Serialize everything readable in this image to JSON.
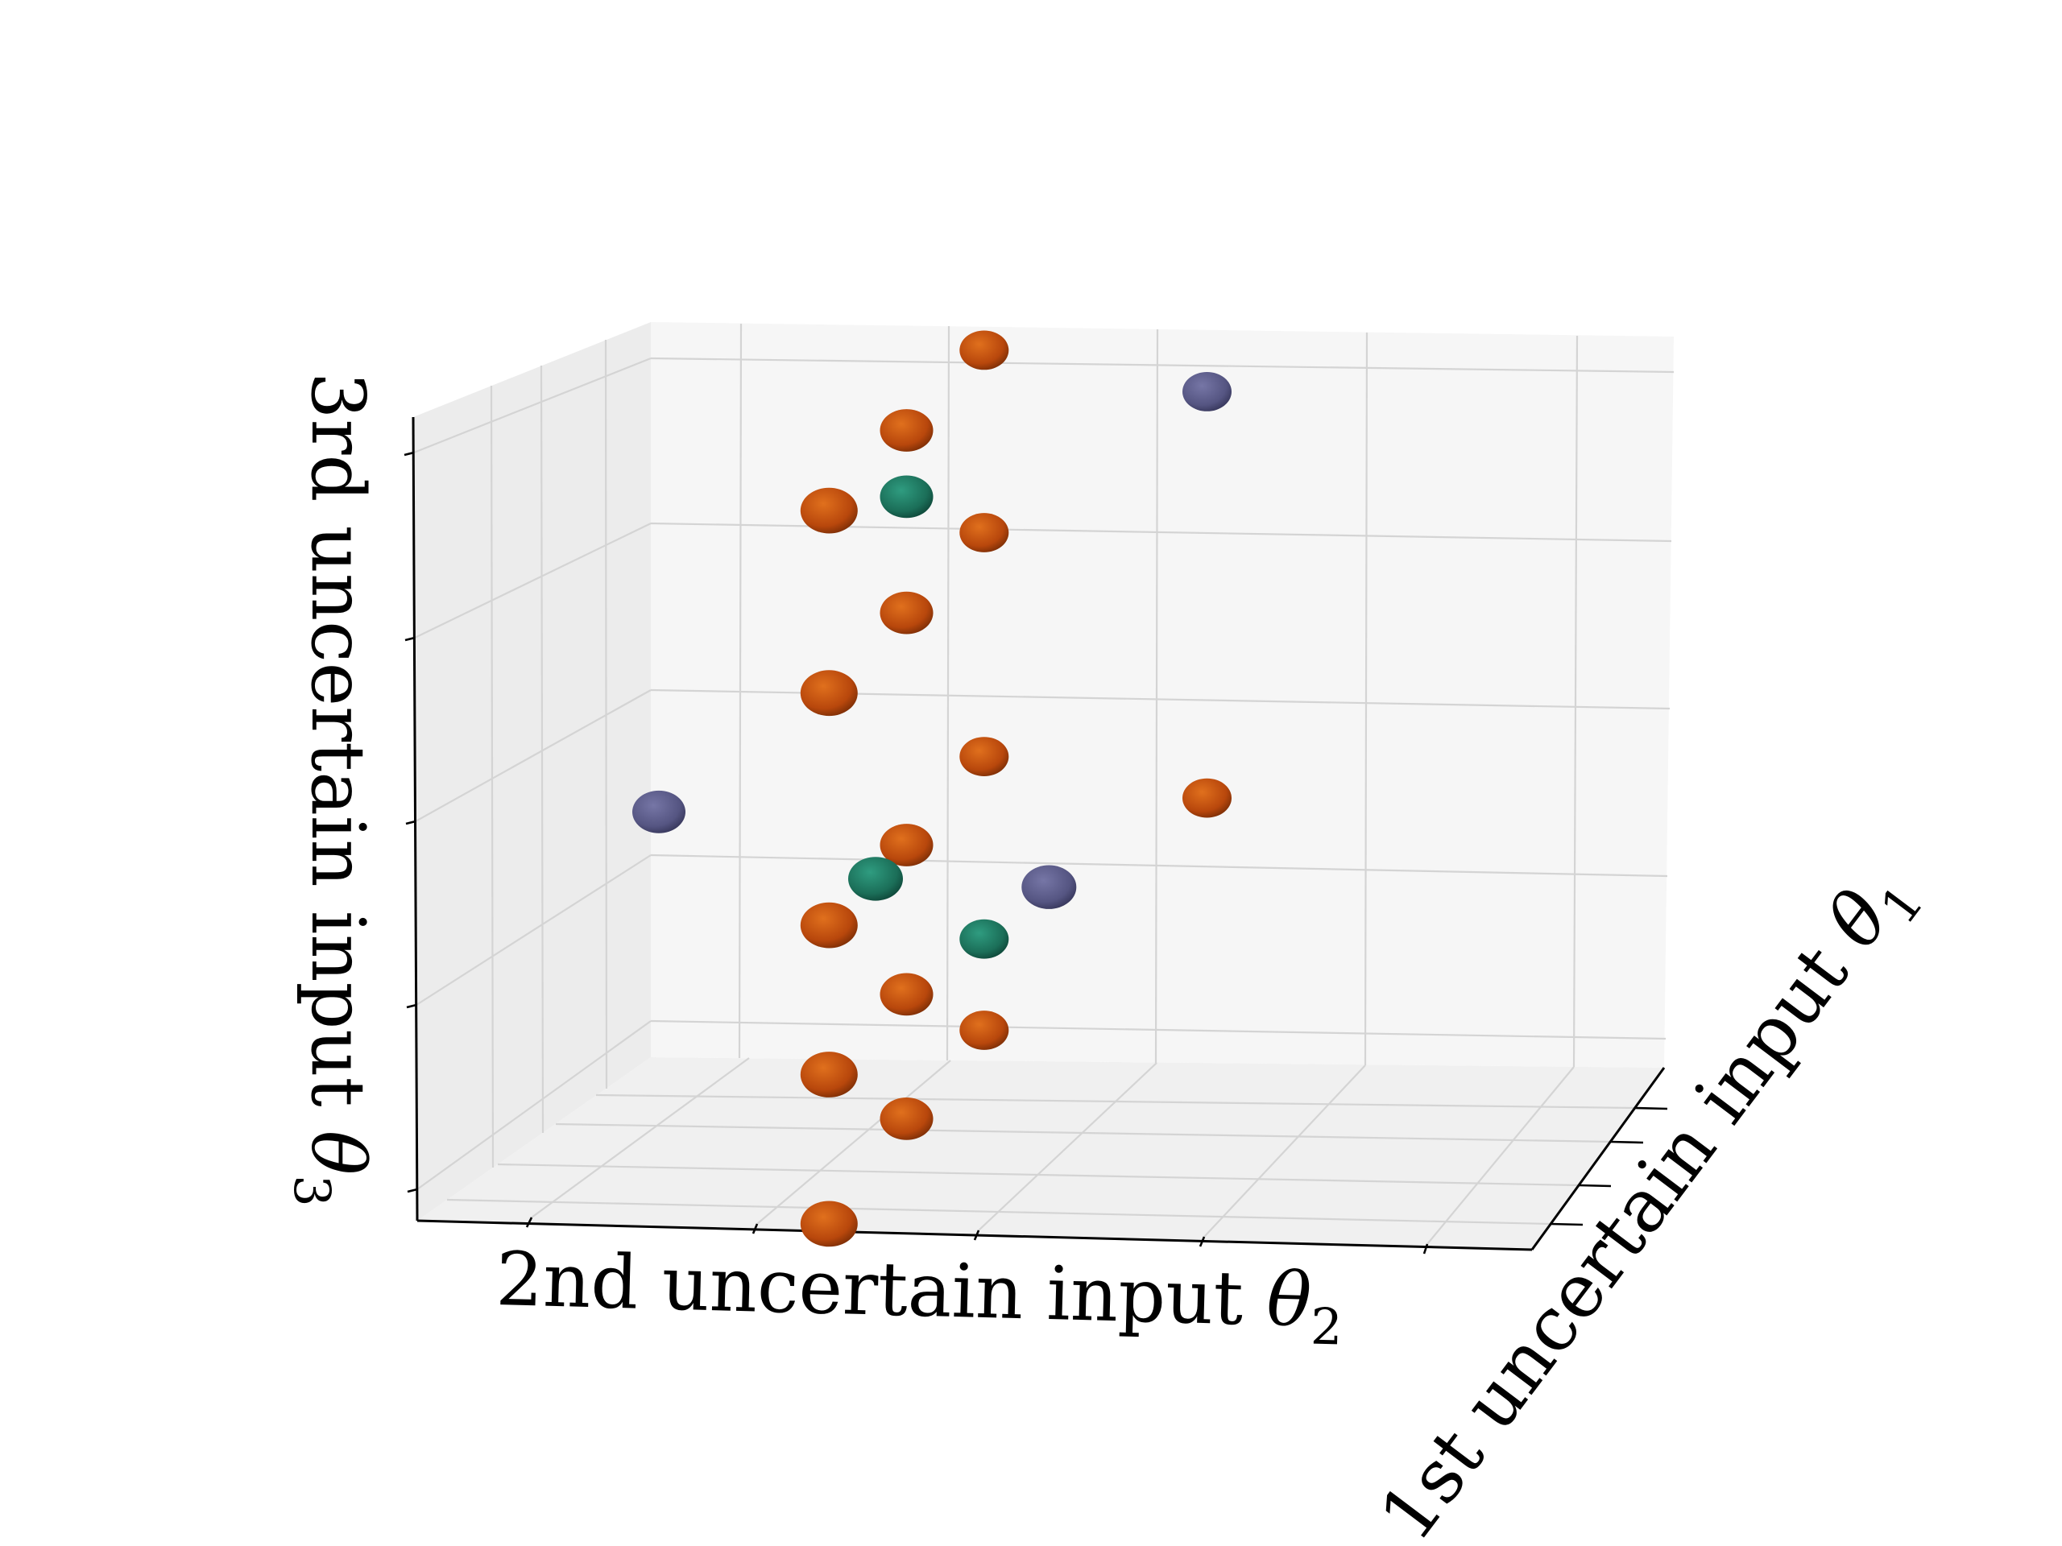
{
  "chart_data": {
    "type": "scatter",
    "projection": "3d",
    "title": "",
    "xlabel": "1st uncertain input",
    "ylabel": "2nd uncertain input",
    "zlabel": "3rd uncertain input",
    "xlabel_symbol": "θ",
    "xlabel_subscript": "1",
    "ylabel_symbol": "θ",
    "ylabel_subscript": "2",
    "zlabel_symbol": "θ",
    "zlabel_subscript": "3",
    "tick_labels_visible": false,
    "grid": true,
    "legend": "none",
    "marker": "sphere",
    "series": [
      {
        "color": "#c2500f",
        "points": [
          {
            "x": 0.75,
            "y": 0.5,
            "z": 0.92
          },
          {
            "x": 0.5,
            "y": 0.5,
            "z": 0.85
          },
          {
            "x": 0.25,
            "y": 0.5,
            "z": 0.78
          },
          {
            "x": 0.75,
            "y": 0.5,
            "z": 0.7
          },
          {
            "x": 0.5,
            "y": 0.5,
            "z": 0.63
          },
          {
            "x": 0.25,
            "y": 0.5,
            "z": 0.56
          },
          {
            "x": 0.75,
            "y": 0.5,
            "z": 0.43
          },
          {
            "x": 0.5,
            "y": 0.5,
            "z": 0.35
          },
          {
            "x": 0.25,
            "y": 0.5,
            "z": 0.28
          },
          {
            "x": 0.75,
            "y": 0.95,
            "z": 0.38
          },
          {
            "x": 0.5,
            "y": 0.5,
            "z": 0.17
          },
          {
            "x": 0.75,
            "y": 0.5,
            "z": 0.1
          },
          {
            "x": 0.25,
            "y": 0.5,
            "z": 0.1
          },
          {
            "x": 0.5,
            "y": 0.5,
            "z": 0.02
          },
          {
            "x": 0.25,
            "y": 0.5,
            "z": -0.08
          }
        ]
      },
      {
        "color": "#1e7a62",
        "points": [
          {
            "x": 0.5,
            "y": 0.5,
            "z": 0.77
          },
          {
            "x": 0.4,
            "y": 0.5,
            "z": 0.32
          },
          {
            "x": 0.75,
            "y": 0.5,
            "z": 0.21
          }
        ]
      },
      {
        "color": "#5a5a88",
        "points": [
          {
            "x": 0.5,
            "y": 0.0,
            "z": 0.39
          },
          {
            "x": 0.75,
            "y": 0.95,
            "z": 0.87
          },
          {
            "x": 0.4,
            "y": 0.85,
            "z": 0.31
          }
        ]
      }
    ]
  }
}
